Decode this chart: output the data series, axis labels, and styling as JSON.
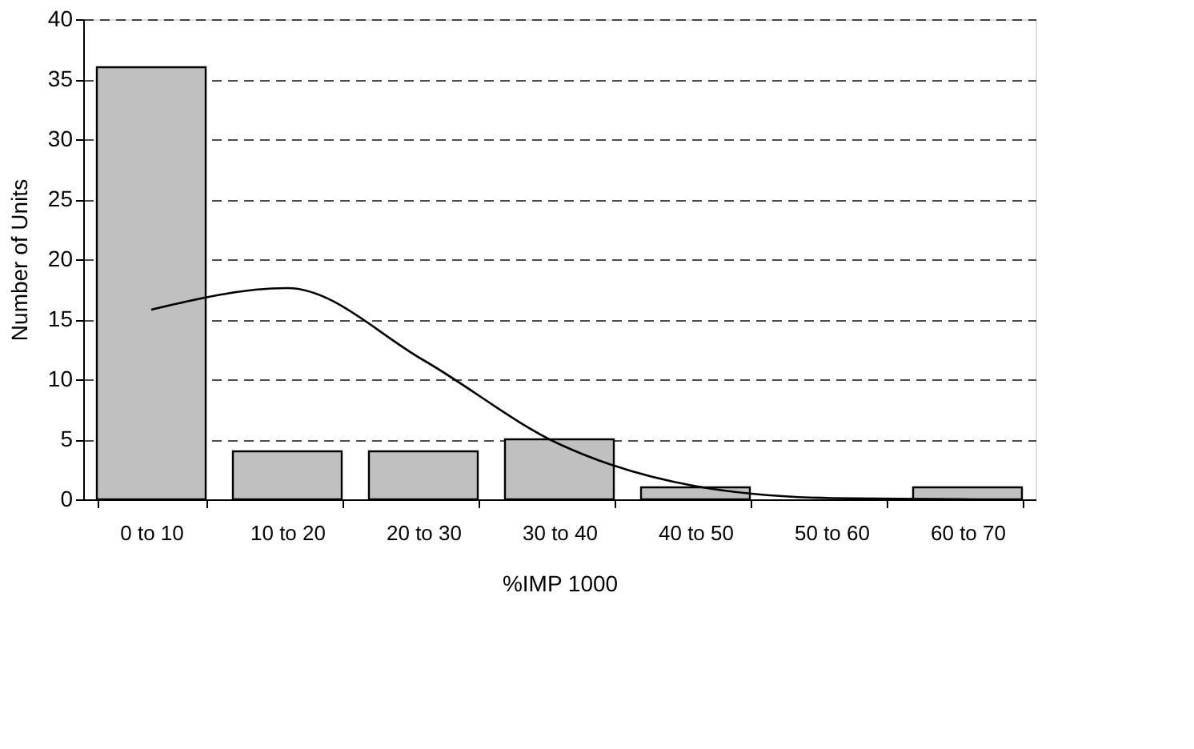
{
  "chart_data": {
    "type": "bar",
    "xlabel": "%IMP 1000",
    "ylabel": "Number of Units",
    "categories": [
      "0 to 10",
      "10 to 20",
      "20 to 30",
      "30 to 40",
      "40 to 50",
      "50 to 60",
      "60 to 70"
    ],
    "series": [
      {
        "color": "#c0c0c0",
        "values": [
          36,
          4,
          4,
          5,
          1,
          0,
          1
        ]
      },
      {
        "type": "line",
        "color": "#000000",
        "values": [
          15.8,
          17.6,
          11.6,
          4.6,
          1.1,
          0.1,
          0
        ]
      }
    ],
    "ylim": [
      0,
      40
    ],
    "yticks": [
      0,
      5,
      10,
      15,
      20,
      25,
      30,
      35,
      40
    ],
    "grid": "y",
    "marker": "none",
    "line_style": "solid"
  }
}
